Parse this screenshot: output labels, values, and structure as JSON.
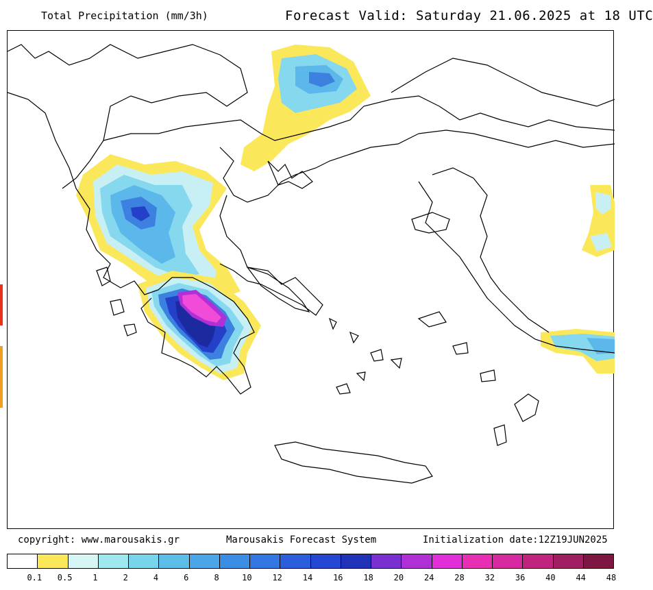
{
  "header": {
    "title": "Total Precipitation (mm/3h)",
    "forecast": "Forecast Valid:  Saturday 21.06.2025 at 18 UTC"
  },
  "footer": {
    "copyright": "copyright: www.marousakis.gr",
    "system": "Marousakis Forecast System",
    "init": "Initialization date:12Z19JUN2025"
  },
  "legend": {
    "labels": [
      "0.1",
      "0.5",
      "1",
      "2",
      "4",
      "6",
      "8",
      "10",
      "12",
      "14",
      "16",
      "18",
      "20",
      "24",
      "28",
      "32",
      "36",
      "40",
      "44",
      "48"
    ],
    "colors": [
      "#ffffff",
      "#fbe85a",
      "#d6f6f6",
      "#9ee8f0",
      "#78d4ea",
      "#5cbde8",
      "#4aa6e6",
      "#3c8ee4",
      "#3276e2",
      "#2a5edc",
      "#2448d4",
      "#2032b8",
      "#7a2fd0",
      "#b030d8",
      "#e02fd8",
      "#e82fb4",
      "#d82aa0",
      "#c0247e",
      "#a01e62",
      "#7e1644"
    ]
  },
  "map": {
    "colors": {
      "yellow": "#fbe85a",
      "light": "#c8f0f4",
      "cyan": "#86d8ee",
      "mid": "#5cb8ea",
      "blue": "#3c80e0",
      "deep": "#2440c8",
      "navy": "#1c2aa0",
      "violet": "#b030d8",
      "magenta": "#f04cd8"
    }
  },
  "edge": {
    "colors": [
      "#e8331a",
      "#f0a020"
    ]
  }
}
